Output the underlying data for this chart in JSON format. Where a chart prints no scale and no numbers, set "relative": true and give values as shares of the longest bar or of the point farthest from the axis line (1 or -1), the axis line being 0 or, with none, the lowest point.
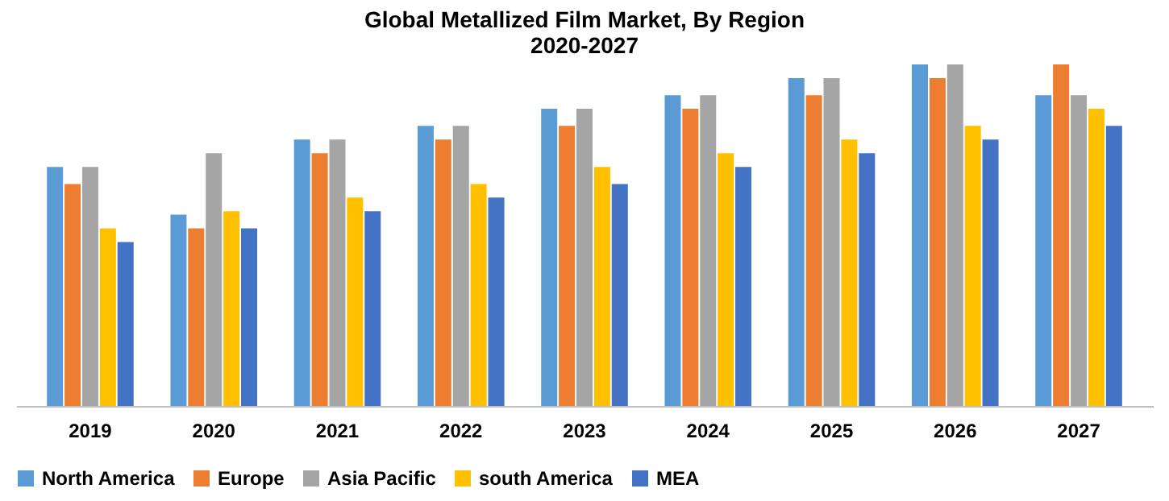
{
  "chart_data": {
    "type": "bar",
    "title": "Global Metallized Film Market, By Region\n2020-2027",
    "relative": true,
    "legend": "bottom",
    "categories": [
      "2019",
      "2020",
      "2021",
      "2022",
      "2023",
      "2024",
      "2025",
      "2026",
      "2027"
    ],
    "series": [
      {
        "name": "North America",
        "color": "#5b9bd5",
        "values": [
          0.7,
          0.56,
          0.78,
          0.82,
          0.87,
          0.91,
          0.96,
          1,
          0.91
        ]
      },
      {
        "name": "Europe",
        "color": "#ed7d31",
        "values": [
          0.65,
          0.52,
          0.74,
          0.78,
          0.82,
          0.87,
          0.91,
          0.96,
          1
        ]
      },
      {
        "name": "Asia Pacific",
        "color": "#a5a5a5",
        "values": [
          0.7,
          0.74,
          0.78,
          0.82,
          0.87,
          0.91,
          0.96,
          1,
          0.91
        ]
      },
      {
        "name": "south America",
        "color": "#ffc000",
        "values": [
          0.52,
          0.57,
          0.61,
          0.65,
          0.7,
          0.74,
          0.78,
          0.82,
          0.87
        ]
      },
      {
        "name": "MEA",
        "color": "#4472c4",
        "values": [
          0.48,
          0.52,
          0.57,
          0.61,
          0.65,
          0.7,
          0.74,
          0.78,
          0.82
        ]
      }
    ]
  }
}
